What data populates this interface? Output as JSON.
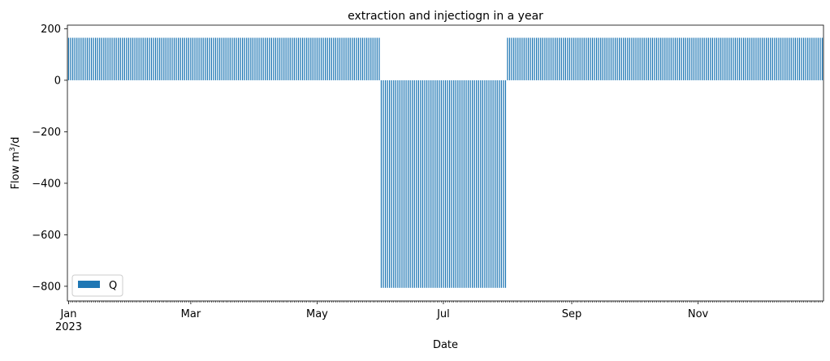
{
  "chart_data": {
    "type": "bar",
    "title": "extraction and injectiogn in a year",
    "xlabel": "Date",
    "ylabel_main": "Flow m",
    "ylabel_sup": "3",
    "ylabel_tail": "/d",
    "ylim": [
      -857,
      214
    ],
    "yticks": [
      200,
      0,
      -200,
      -400,
      -600,
      -800
    ],
    "ytick_labels": [
      "200",
      "0",
      "−200",
      "−400",
      "−600",
      "−800"
    ],
    "xticks": [
      {
        "date": "2023-01-01",
        "label": "Jan",
        "sublabel": "2023"
      },
      {
        "date": "2023-03-01",
        "label": "Mar"
      },
      {
        "date": "2023-05-01",
        "label": "May"
      },
      {
        "date": "2023-07-01",
        "label": "Jul"
      },
      {
        "date": "2023-09-01",
        "label": "Sep"
      },
      {
        "date": "2023-11-01",
        "label": "Nov"
      }
    ],
    "x_start": "2023-01-01",
    "x_end": "2023-12-31",
    "legend": {
      "entries": [
        "Q"
      ],
      "placement": "lower-left"
    },
    "grid": false,
    "series": [
      {
        "name": "Q",
        "color": "#1f77b4",
        "segments": [
          {
            "from": "2023-01-01",
            "to": "2023-05-31",
            "value": 165
          },
          {
            "from": "2023-06-01",
            "to": "2023-07-31",
            "value": -806
          },
          {
            "from": "2023-08-01",
            "to": "2023-12-31",
            "value": 165
          }
        ]
      }
    ]
  }
}
